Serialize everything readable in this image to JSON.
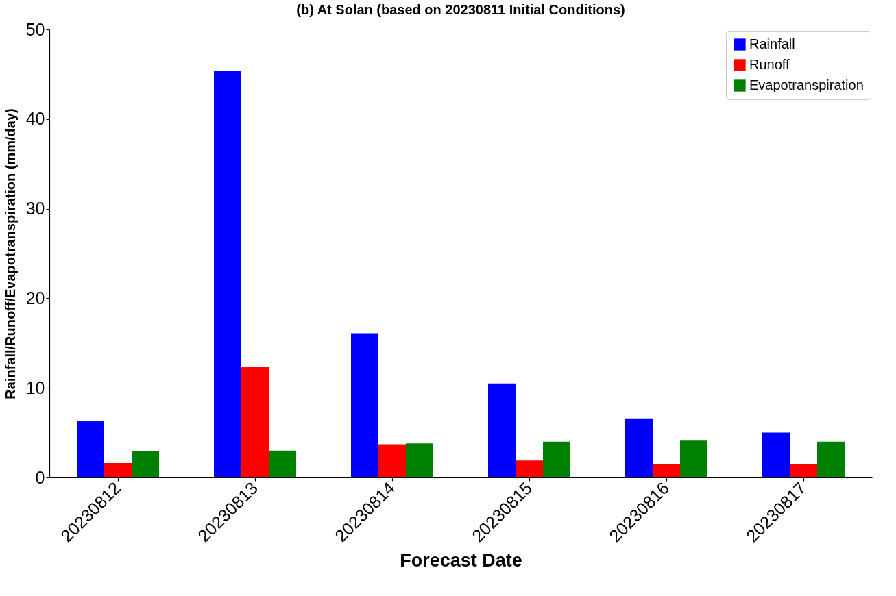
{
  "chart_data": {
    "type": "bar",
    "title": "(b) At Solan (based on 20230811 Initial Conditions)",
    "xlabel": "Forecast Date",
    "ylabel": "Rainfall/Runoff/Evapotranspiration (mm/day)",
    "categories": [
      "20230812",
      "20230813",
      "20230814",
      "20230815",
      "20230816",
      "20230817"
    ],
    "series": [
      {
        "name": "Rainfall",
        "color": "#0000ff",
        "values": [
          6.3,
          45.4,
          16.1,
          10.5,
          6.6,
          5.0
        ]
      },
      {
        "name": "Runoff",
        "color": "#ff0000",
        "values": [
          1.6,
          12.3,
          3.7,
          1.9,
          1.5,
          1.5
        ]
      },
      {
        "name": "Evapotranspiration",
        "color": "#008000",
        "values": [
          2.9,
          3.0,
          3.8,
          4.0,
          4.1,
          4.0
        ]
      }
    ],
    "ylim": [
      0,
      50
    ],
    "yticks": [
      0,
      10,
      20,
      30,
      40,
      50
    ],
    "grid": false,
    "legend": "top right"
  }
}
